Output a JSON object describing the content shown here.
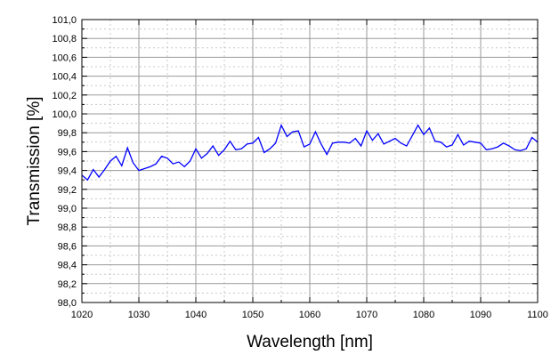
{
  "chart_data": {
    "type": "line",
    "title": "",
    "xlabel": "Wavelength [nm]",
    "ylabel": "Transmission [%]",
    "xlim": [
      1020,
      1100
    ],
    "ylim": [
      98.0,
      101.0
    ],
    "grid": true,
    "x_ticks": [
      "1020",
      "1030",
      "1040",
      "1050",
      "1060",
      "1070",
      "1080",
      "1090",
      "1100"
    ],
    "y_ticks": [
      "98,0",
      "98,2",
      "98,4",
      "98,6",
      "98,8",
      "99,0",
      "99,2",
      "99,4",
      "99,6",
      "99,8",
      "100,0",
      "100,2",
      "100,4",
      "100,6",
      "100,8",
      "101,0"
    ],
    "line_color": "#0000ff",
    "series": [
      {
        "x": [
          1020,
          1021,
          1022,
          1023,
          1024,
          1025,
          1026,
          1027,
          1028,
          1029,
          1030,
          1031,
          1032,
          1033,
          1034,
          1035,
          1036,
          1037,
          1038,
          1039,
          1040,
          1041,
          1042,
          1043,
          1044,
          1045,
          1046,
          1047,
          1048,
          1049,
          1050,
          1051,
          1052,
          1053,
          1054,
          1055,
          1056,
          1057,
          1058,
          1059,
          1060,
          1061,
          1062,
          1063,
          1064,
          1065,
          1066,
          1067,
          1068,
          1069,
          1070,
          1071,
          1072,
          1073,
          1074,
          1075,
          1076,
          1077,
          1078,
          1079,
          1080,
          1081,
          1082,
          1083,
          1084,
          1085,
          1086,
          1087,
          1088,
          1089,
          1090,
          1091,
          1092,
          1093,
          1094,
          1095,
          1096,
          1097,
          1098,
          1099,
          1100
        ],
        "values": [
          99.35,
          99.3,
          99.41,
          99.33,
          99.41,
          99.5,
          99.55,
          99.45,
          99.64,
          99.48,
          99.4,
          99.42,
          99.44,
          99.47,
          99.55,
          99.53,
          99.47,
          99.49,
          99.44,
          99.5,
          99.63,
          99.53,
          99.58,
          99.66,
          99.56,
          99.62,
          99.71,
          99.62,
          99.63,
          99.68,
          99.69,
          99.75,
          99.59,
          99.63,
          99.69,
          99.88,
          99.76,
          99.81,
          99.82,
          99.65,
          99.68,
          99.81,
          99.68,
          99.57,
          99.69,
          99.7,
          99.7,
          99.69,
          99.74,
          99.66,
          99.82,
          99.72,
          99.79,
          99.68,
          99.71,
          99.74,
          99.69,
          99.66,
          99.77,
          99.88,
          99.78,
          99.85,
          99.71,
          99.7,
          99.65,
          99.67,
          99.78,
          99.67,
          99.71,
          99.7,
          99.69,
          99.62,
          99.63,
          99.65,
          99.69,
          99.66,
          99.62,
          99.61,
          99.63,
          99.75,
          99.7
        ]
      }
    ]
  }
}
